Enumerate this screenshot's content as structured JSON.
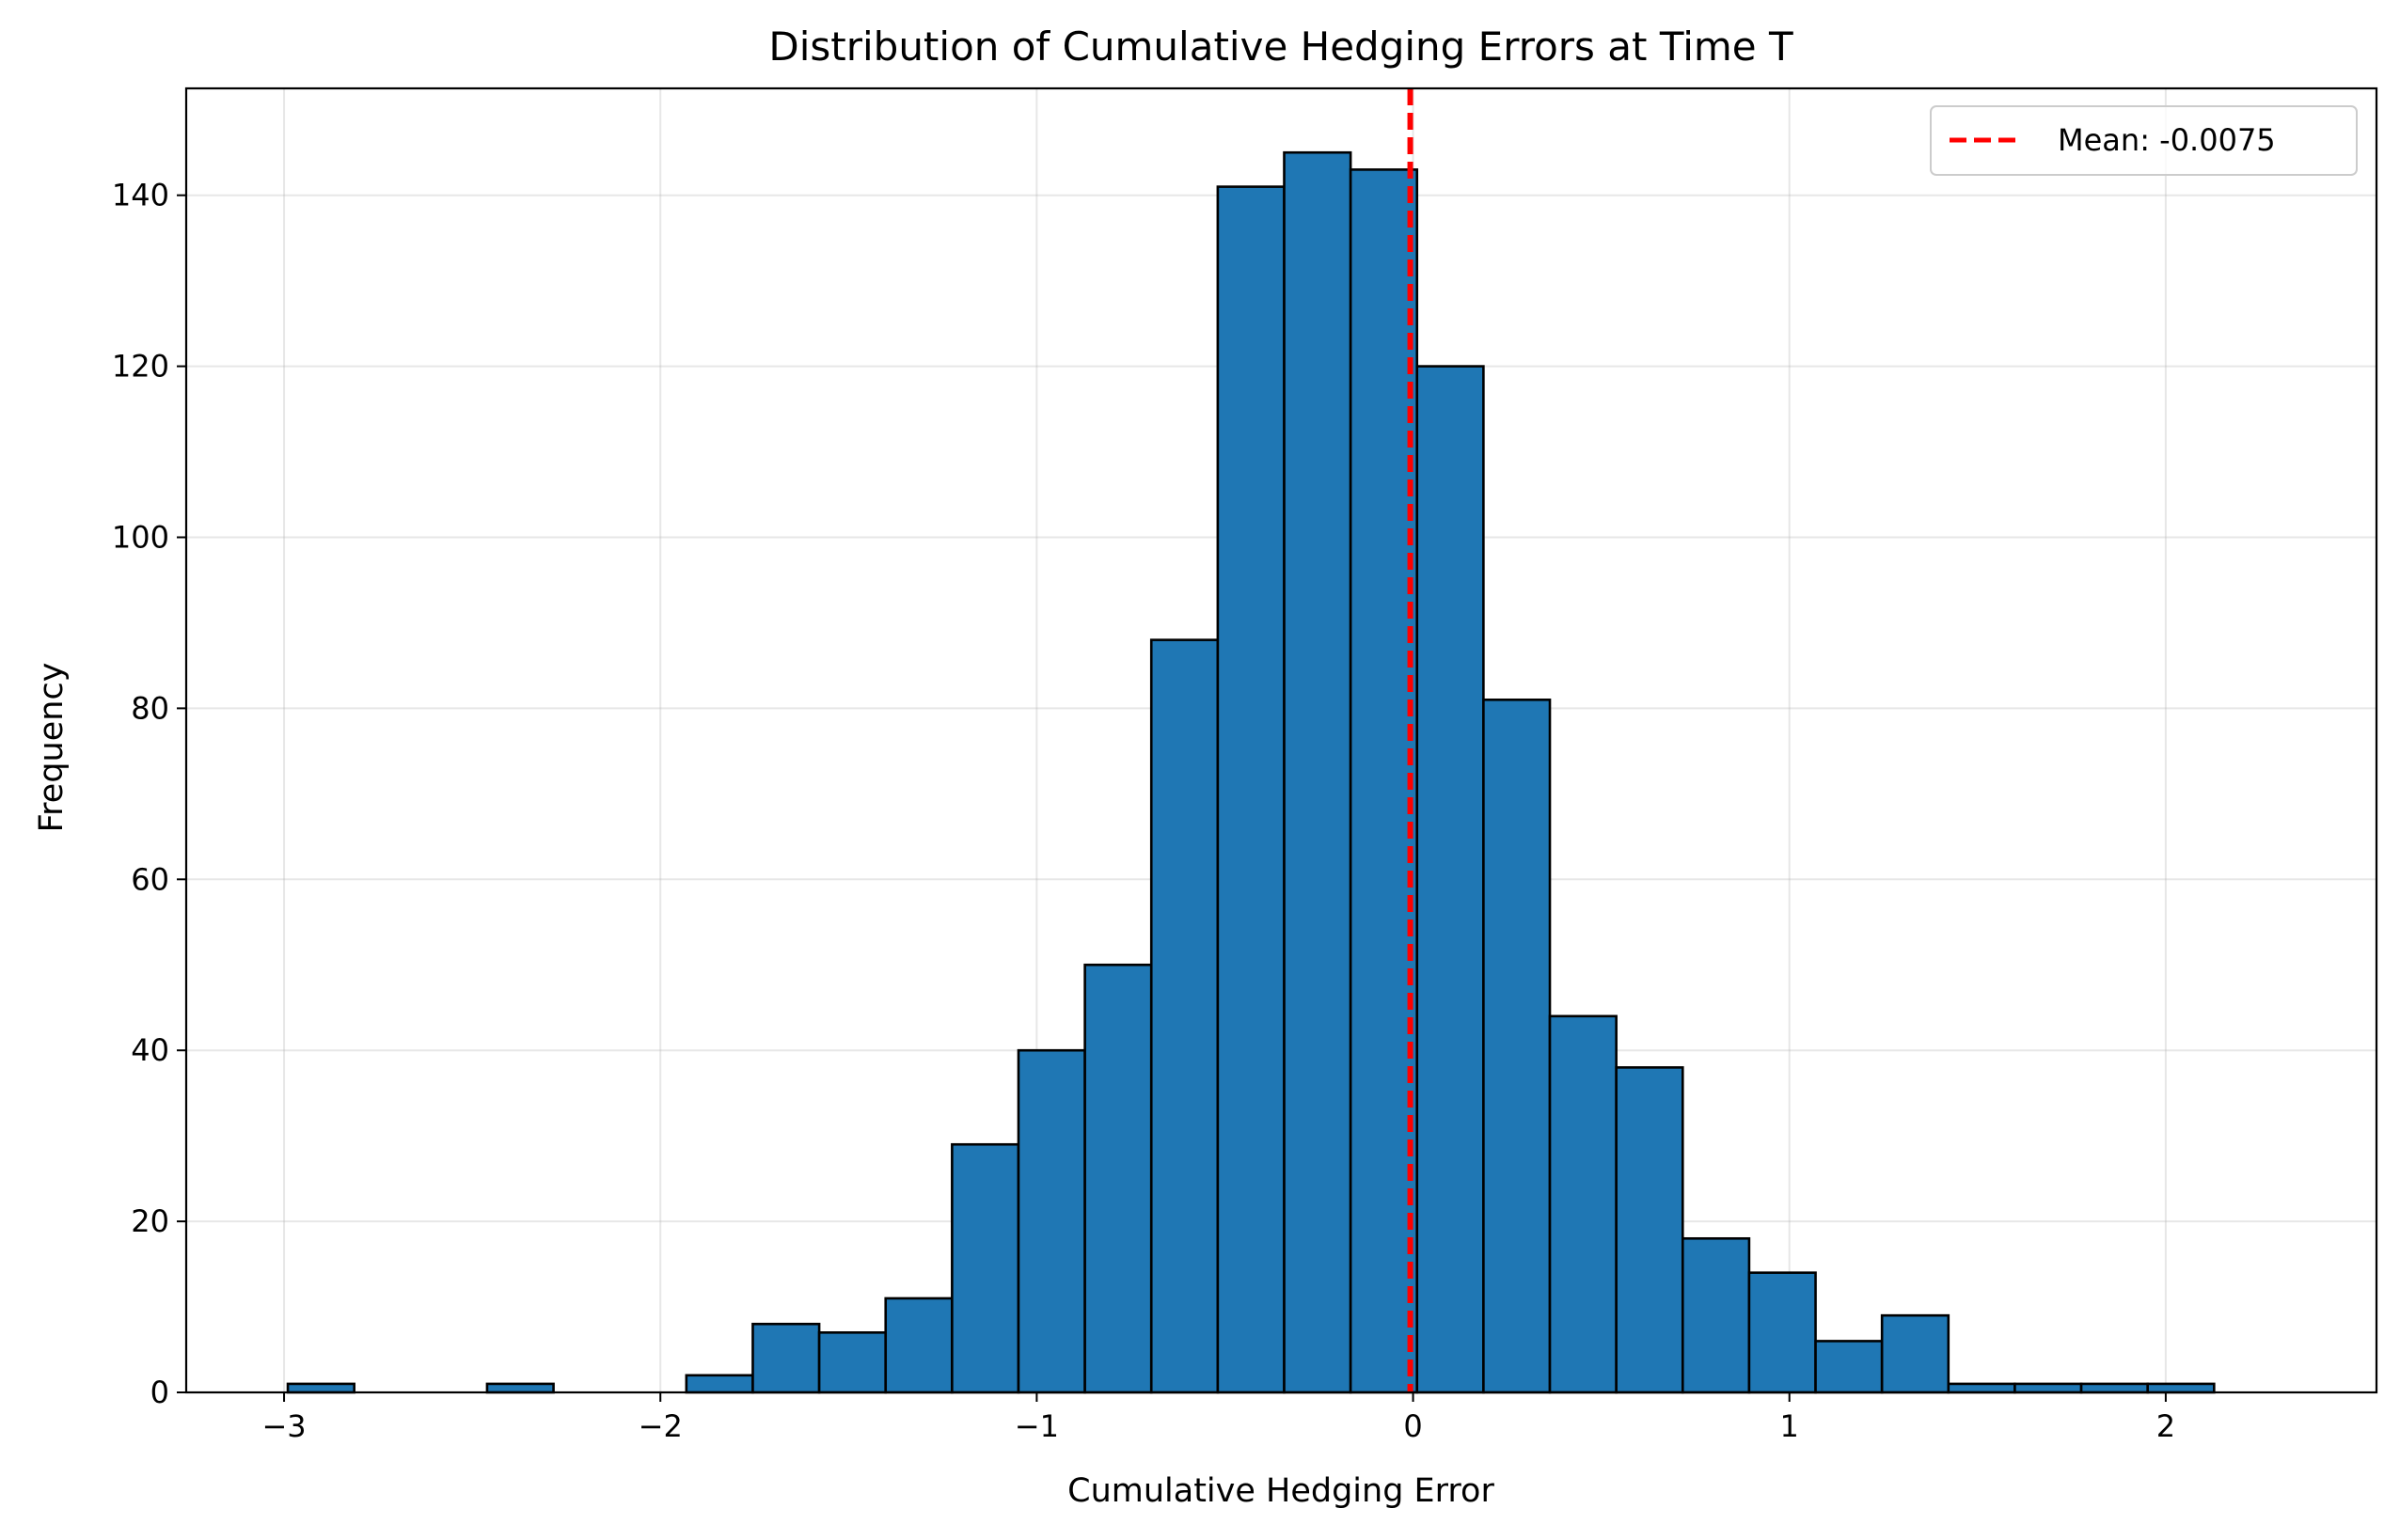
{
  "chart_data": {
    "type": "bar",
    "title": "Distribution of Cumulative Hedging Errors at Time T",
    "xlabel": "Cumulative Hedging Error",
    "ylabel": "Frequency",
    "xlim": [
      -3.26,
      2.56
    ],
    "ylim": [
      0,
      152.5
    ],
    "xticks": [
      -3,
      -2,
      -1,
      0,
      1,
      2
    ],
    "xtick_labels": [
      "−3",
      "−2",
      "−1",
      "0",
      "1",
      "2"
    ],
    "yticks": [
      0,
      20,
      40,
      60,
      80,
      100,
      120,
      140
    ],
    "ytick_labels": [
      "0",
      "20",
      "40",
      "60",
      "80",
      "100",
      "120",
      "140"
    ],
    "grid": true,
    "legend_position": "top-right",
    "bar_color": "#1f77b4",
    "edge_color": "#000000",
    "bin_start": -2.99,
    "bin_width": 0.1765,
    "values": [
      1,
      0,
      0,
      1,
      0,
      0,
      2,
      8,
      7,
      11,
      29,
      40,
      50,
      88,
      141,
      145,
      143,
      120,
      81,
      44,
      38,
      18,
      14,
      6,
      9,
      1,
      1,
      1,
      1
    ],
    "mean_line": {
      "label": "Mean: -0.0075",
      "value": -0.0075,
      "color": "#ff0000",
      "style": "dashed"
    }
  }
}
